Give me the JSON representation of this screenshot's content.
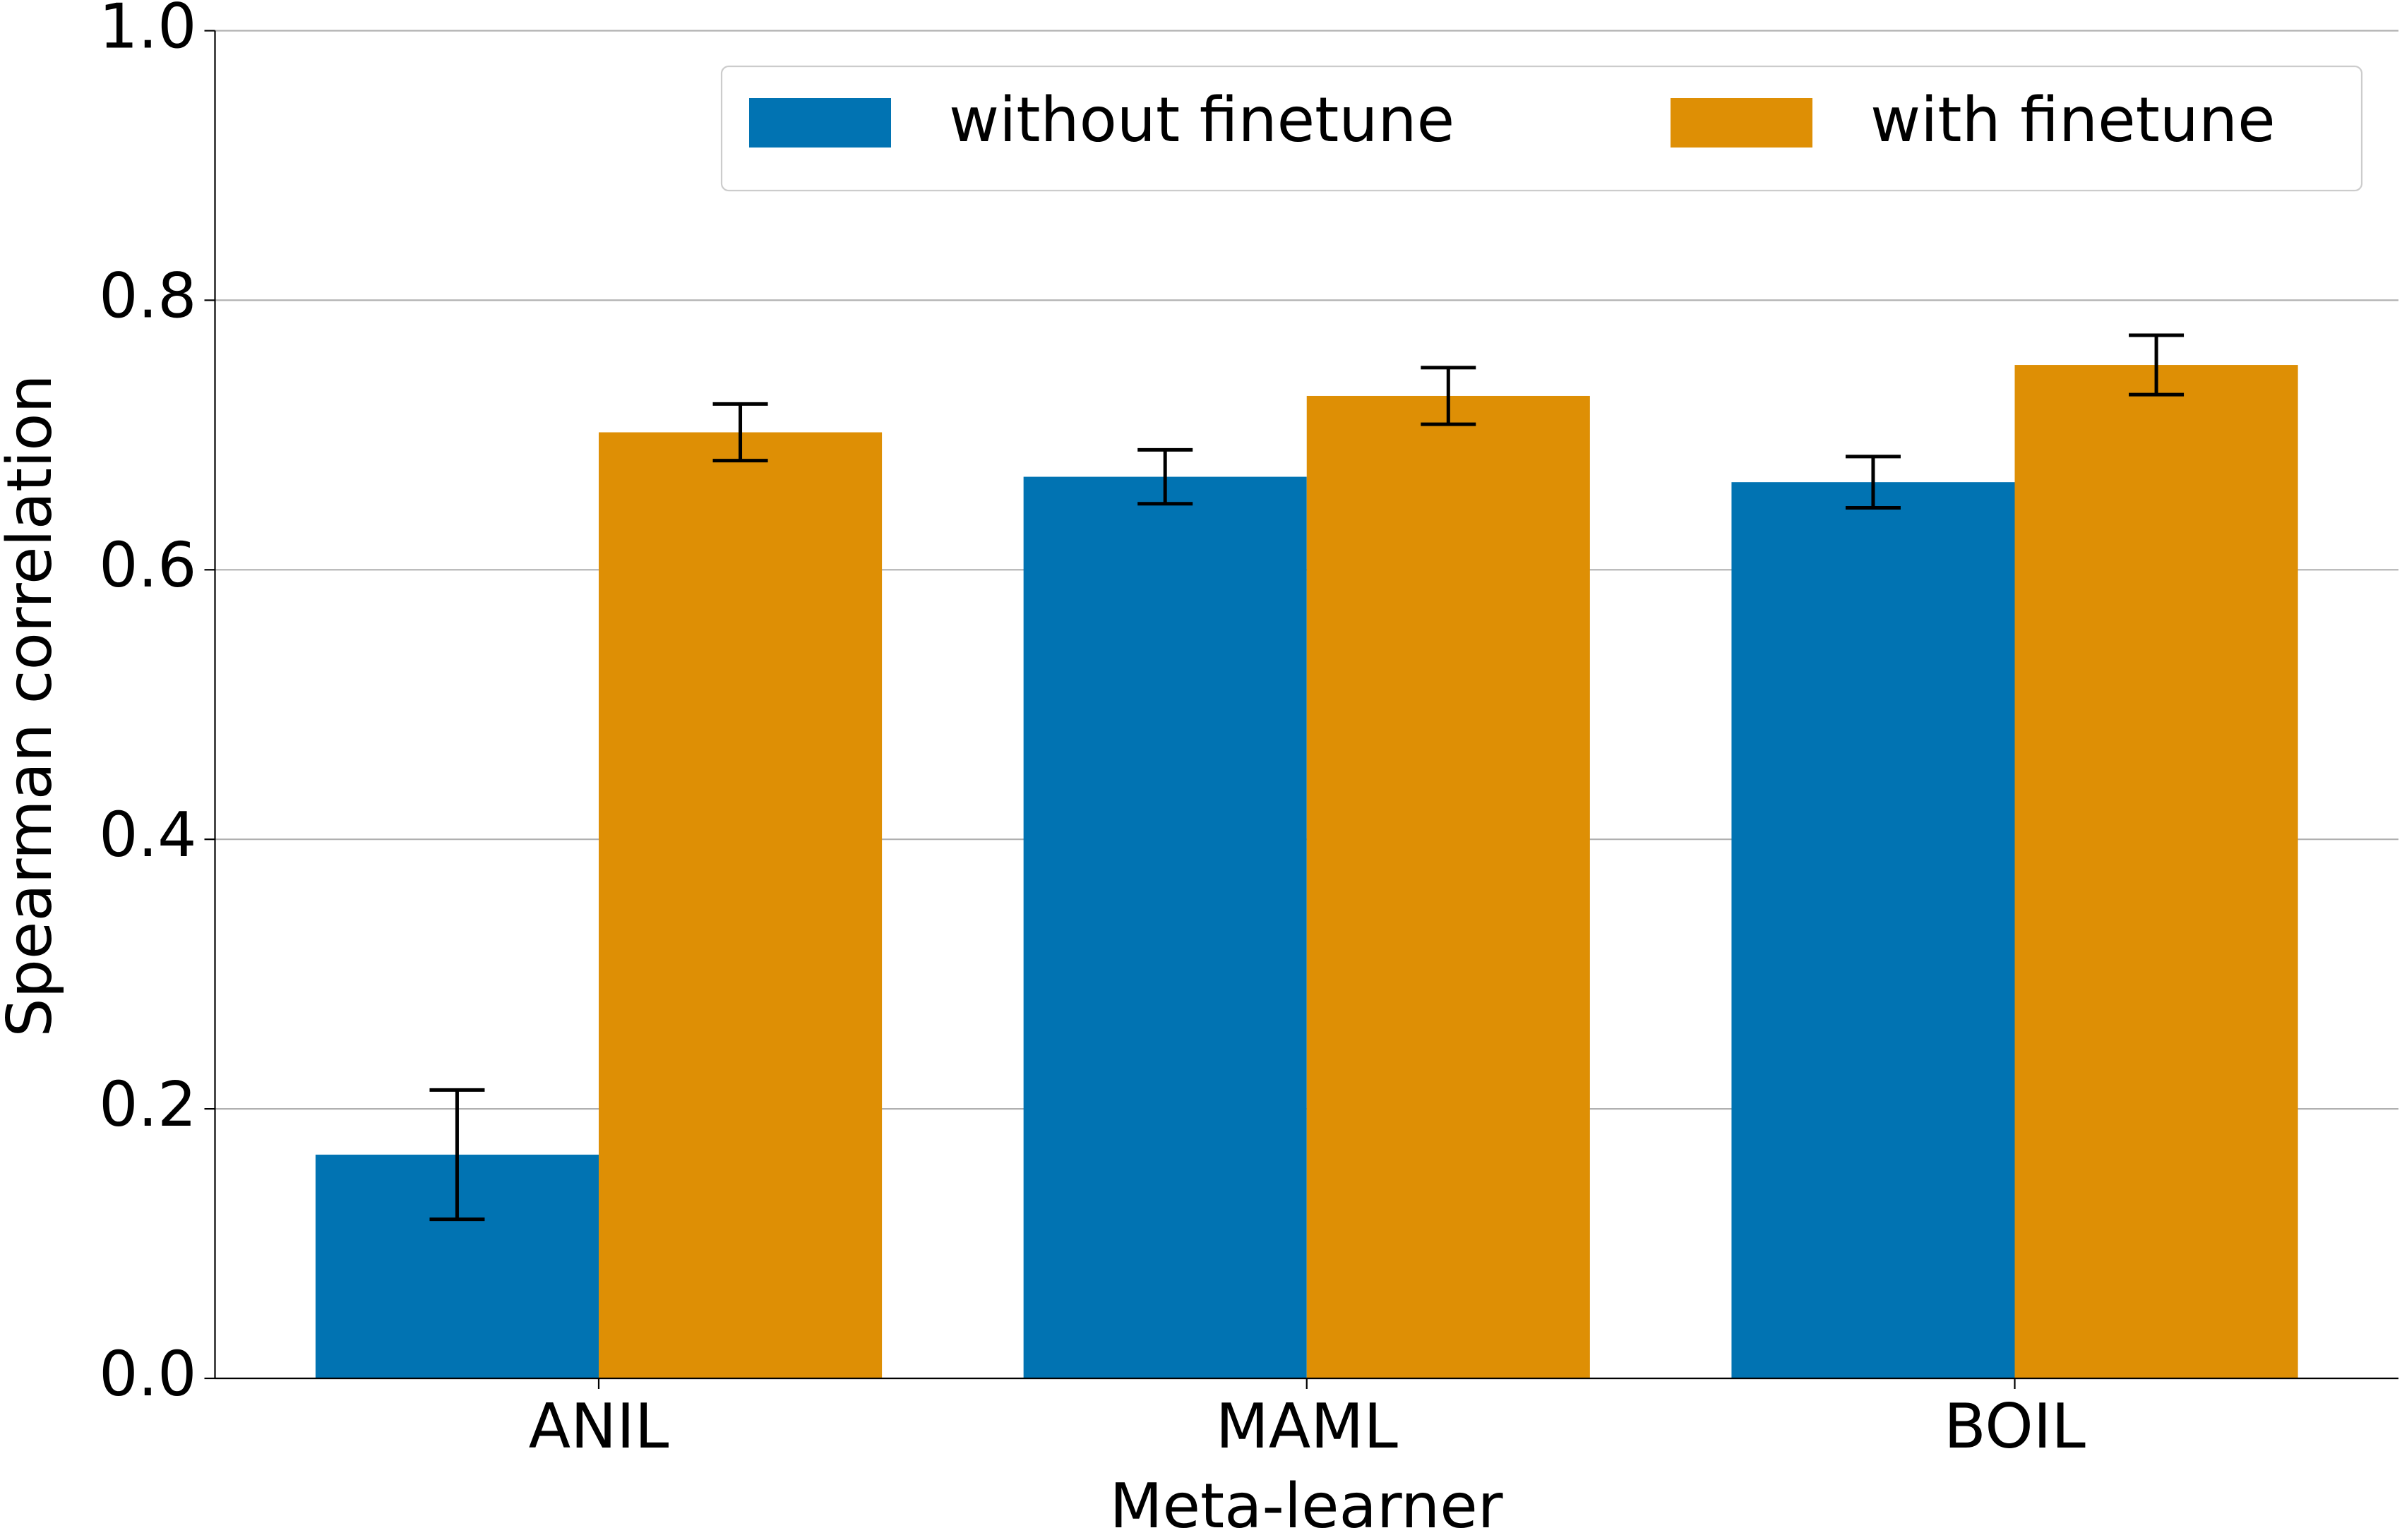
{
  "chart_data": {
    "type": "bar",
    "xlabel": "Meta-learner",
    "ylabel": "Spearman correlation",
    "categories": [
      "ANIL",
      "MAML",
      "BOIL"
    ],
    "series": [
      {
        "name": "without finetune",
        "color": "#0173b2",
        "values": [
          0.166,
          0.669,
          0.665
        ],
        "errors": [
          0.048,
          0.02,
          0.019
        ]
      },
      {
        "name": "with finetune",
        "color": "#de8f05",
        "values": [
          0.702,
          0.729,
          0.752
        ],
        "errors": [
          0.021,
          0.021,
          0.022
        ]
      }
    ],
    "ylim": [
      0,
      1
    ],
    "yticks": [
      {
        "value": 0,
        "label": "0.0"
      },
      0.2,
      0.4,
      0.6,
      0.8,
      {
        "value": 1,
        "label": "1.0"
      }
    ],
    "grid": true,
    "legend": "upper right"
  }
}
